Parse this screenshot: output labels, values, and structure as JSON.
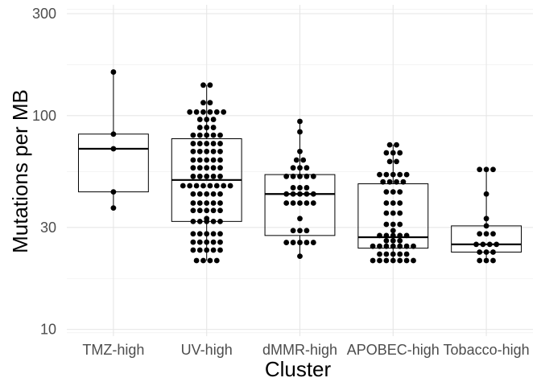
{
  "chart_data": {
    "type": "boxplot",
    "title": "",
    "xlabel": "Cluster",
    "ylabel": "Mutations per MB",
    "y_scale": "log10",
    "ylim": [
      9.3,
      330
    ],
    "y_ticks": [
      10,
      30,
      100,
      300
    ],
    "grid": true,
    "legend": "none",
    "categories": [
      "TMZ-high",
      "UV-high",
      "dMMR-high",
      "APOBEC-high",
      "Tobacco-high"
    ],
    "boxes": [
      {
        "name": "TMZ-high",
        "min": 37,
        "q1": 44,
        "median": 70,
        "q3": 82,
        "max": 160
      },
      {
        "name": "UV-high",
        "min": 21,
        "q1": 32,
        "median": 50,
        "q3": 78,
        "max": 139
      },
      {
        "name": "dMMR-high",
        "min": 22,
        "q1": 27.5,
        "median": 43,
        "q3": 53,
        "max": 94
      },
      {
        "name": "APOBEC-high",
        "min": 21,
        "q1": 24,
        "median": 27,
        "q3": 48,
        "max": 73
      },
      {
        "name": "Tobacco-high",
        "min": 21,
        "q1": 23,
        "median": 25,
        "q3": 30.5,
        "max": 56
      }
    ],
    "points": [
      {
        "category": "TMZ-high",
        "values": [
          160,
          82,
          70,
          44,
          37
        ]
      },
      {
        "category": "UV-high",
        "values": [
          139,
          139,
          115,
          115,
          104,
          104,
          104,
          104,
          104,
          104,
          96,
          96,
          96,
          88,
          88,
          88,
          81,
          81,
          81,
          81,
          81,
          74,
          74,
          74,
          74,
          74,
          68,
          68,
          68,
          68,
          68,
          62,
          62,
          62,
          62,
          62,
          57,
          57,
          57,
          57,
          57,
          52,
          52,
          52,
          52,
          52,
          47,
          47,
          47,
          47,
          47,
          47,
          47,
          47,
          43,
          43,
          43,
          43,
          43,
          39,
          39,
          39,
          39,
          39,
          36,
          36,
          36,
          36,
          36,
          33,
          32,
          32,
          32,
          32,
          32,
          28,
          28,
          28,
          28,
          28,
          25.6,
          25.6,
          25.6,
          25.6,
          25.6,
          23.5,
          23.5,
          23.5,
          23.5,
          23.5,
          21,
          21,
          21,
          21
        ]
      },
      {
        "category": "dMMR-high",
        "values": [
          94,
          84,
          68,
          62,
          62,
          57,
          57,
          57,
          52,
          52,
          52,
          52,
          52,
          46,
          46,
          46,
          43,
          43,
          43,
          43,
          43,
          39,
          39,
          39,
          39,
          39,
          33,
          29,
          29,
          29,
          25.5,
          25.5,
          25.5,
          25.5,
          25.5,
          22
        ]
      },
      {
        "category": "APOBEC-high",
        "values": [
          73,
          73,
          67,
          67,
          67,
          61,
          61,
          53,
          53,
          53,
          53,
          53,
          49,
          49,
          49,
          49,
          44,
          44,
          44,
          39,
          39,
          39,
          35,
          35,
          35,
          31,
          31,
          31,
          29,
          27.5,
          27.5,
          27.5,
          27.5,
          27.5,
          26,
          26,
          26,
          24.5,
          24.5,
          24.5,
          24.5,
          24.5,
          24.5,
          24.5,
          22.5,
          22.5,
          22.5,
          22.5,
          22.5,
          21,
          21,
          21,
          21,
          21,
          21,
          21
        ]
      },
      {
        "category": "Tobacco-high",
        "values": [
          56,
          56,
          56,
          43,
          33,
          30.5,
          28,
          28,
          28,
          25,
          25,
          25,
          25,
          23,
          23,
          23,
          21,
          21,
          21
        ]
      }
    ]
  }
}
